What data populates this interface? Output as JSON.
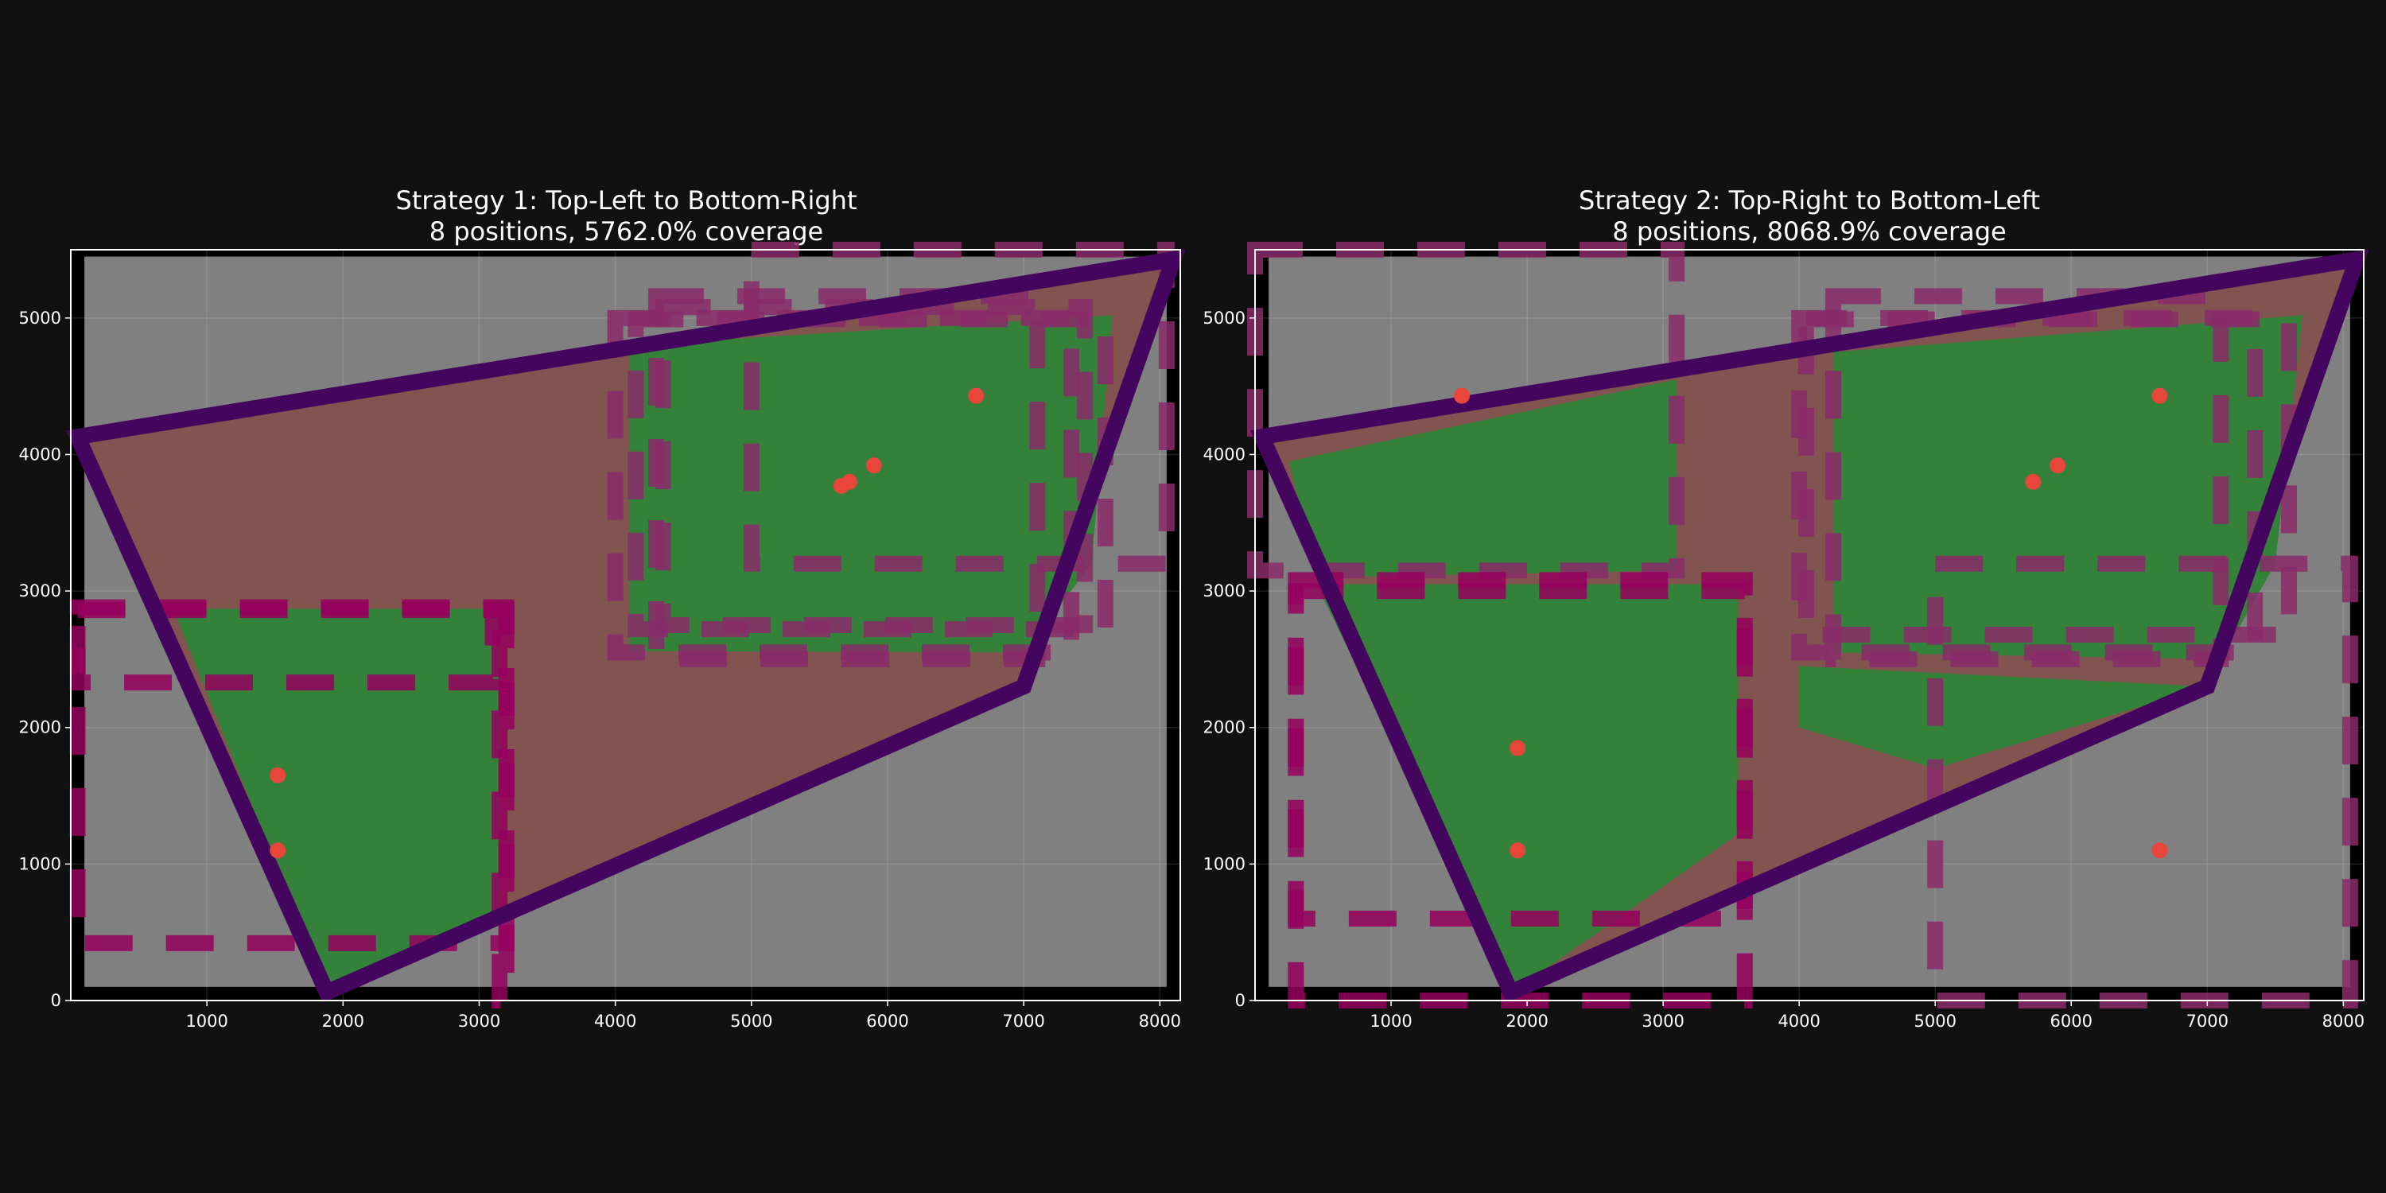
{
  "chart_data": [
    {
      "type": "scatter",
      "title": "Strategy 1: Top-Left to Bottom-Right",
      "subtitle": "8 positions, 5762.0% coverage",
      "xlim": [
        0,
        8150
      ],
      "ylim": [
        0,
        5500
      ],
      "xticks": [
        1000,
        2000,
        3000,
        4000,
        5000,
        6000,
        7000,
        8000
      ],
      "yticks": [
        0,
        1000,
        2000,
        3000,
        4000,
        5000
      ],
      "grid": true,
      "background_rect": [
        100,
        100,
        8050,
        5450
      ],
      "polygon": [
        [
          50,
          4130
        ],
        [
          1880,
          60
        ],
        [
          7000,
          2300
        ],
        [
          8100,
          5430
        ]
      ],
      "covered_regions": [
        [
          [
            750,
            2870
          ],
          [
            3150,
            2870
          ],
          [
            3150,
            630
          ],
          [
            1950,
            100
          ],
          [
            1880,
            60
          ]
        ],
        [
          [
            4100,
            4800
          ],
          [
            7650,
            5020
          ],
          [
            7500,
            3200
          ],
          [
            7000,
            2550
          ],
          [
            4100,
            2560
          ]
        ]
      ],
      "dashed_rects": [
        {
          "x0": 50,
          "y0": 2330,
          "x1": 3100,
          "y1": 2880,
          "color": "#96005e"
        },
        {
          "x0": 50,
          "y0": 420,
          "x1": 3200,
          "y1": 2860,
          "color": "#96005e"
        },
        {
          "x0": 3150,
          "y0": 0,
          "x1": 3200,
          "y1": 2880,
          "color": "#96005e"
        },
        {
          "x0": 4000,
          "y0": 2550,
          "x1": 7350,
          "y1": 5000,
          "color": "#8a2b6a"
        },
        {
          "x0": 4300,
          "y0": 2500,
          "x1": 7100,
          "y1": 5160,
          "color": "#8a2b6a"
        },
        {
          "x0": 4150,
          "y0": 2720,
          "x1": 7600,
          "y1": 4990,
          "color": "#8a2b6a"
        },
        {
          "x0": 4350,
          "y0": 2750,
          "x1": 7450,
          "y1": 5080,
          "color": "#8a2b6a"
        },
        {
          "x0": 5000,
          "y0": 3200,
          "x1": 8050,
          "y1": 5500,
          "color": "#8a2b6a"
        }
      ],
      "points": [
        {
          "x": 1520,
          "y": 1650
        },
        {
          "x": 1520,
          "y": 1100
        },
        {
          "x": 6650,
          "y": 4430
        },
        {
          "x": 5900,
          "y": 3920
        },
        {
          "x": 5720,
          "y": 3800
        },
        {
          "x": 5660,
          "y": 3770
        }
      ]
    },
    {
      "type": "scatter",
      "title": "Strategy 2: Top-Right to Bottom-Left",
      "subtitle": "8 positions, 8068.9% coverage",
      "xlim": [
        0,
        8150
      ],
      "ylim": [
        0,
        5500
      ],
      "xticks": [
        1000,
        2000,
        3000,
        4000,
        5000,
        6000,
        7000,
        8000
      ],
      "yticks": [
        0,
        1000,
        2000,
        3000,
        4000,
        5000
      ],
      "grid": true,
      "background_rect": [
        100,
        100,
        8050,
        5450
      ],
      "polygon": [
        [
          50,
          4130
        ],
        [
          1880,
          60
        ],
        [
          7000,
          2300
        ],
        [
          8100,
          5430
        ]
      ],
      "covered_regions": [
        [
          [
            250,
            3950
          ],
          [
            3100,
            4550
          ],
          [
            3100,
            3150
          ],
          [
            450,
            3100
          ]
        ],
        [
          [
            450,
            3050
          ],
          [
            3550,
            3050
          ],
          [
            3550,
            1220
          ],
          [
            1920,
            80
          ]
        ],
        [
          [
            4250,
            4750
          ],
          [
            7700,
            5020
          ],
          [
            7500,
            3200
          ],
          [
            7100,
            2500
          ],
          [
            4250,
            2550
          ]
        ],
        [
          [
            4000,
            2450
          ],
          [
            7000,
            2300
          ],
          [
            5000,
            1700
          ],
          [
            4000,
            2000
          ]
        ]
      ],
      "dashed_rects": [
        {
          "x0": 0,
          "y0": 3150,
          "x1": 3100,
          "y1": 5500,
          "color": "#8a2b6a"
        },
        {
          "x0": 300,
          "y0": 600,
          "x1": 3600,
          "y1": 3080,
          "color": "#96005e"
        },
        {
          "x0": 300,
          "y0": 0,
          "x1": 3600,
          "y1": 3000,
          "color": "#96005e"
        },
        {
          "x0": 4000,
          "y0": 2550,
          "x1": 7350,
          "y1": 5000,
          "color": "#8a2b6a"
        },
        {
          "x0": 4250,
          "y0": 2500,
          "x1": 7100,
          "y1": 5160,
          "color": "#8a2b6a"
        },
        {
          "x0": 4050,
          "y0": 2680,
          "x1": 7600,
          "y1": 4990,
          "color": "#8a2b6a"
        },
        {
          "x0": 5000,
          "y0": 0,
          "x1": 8050,
          "y1": 3200,
          "color": "#8a2b6a"
        },
        {
          "x0": 1000,
          "y0": 2330,
          "x1": 8100,
          "y1": 2330,
          "color": "#8a2b6a"
        }
      ],
      "points": [
        {
          "x": 1520,
          "y": 4430
        },
        {
          "x": 1930,
          "y": 1850
        },
        {
          "x": 1930,
          "y": 1100
        },
        {
          "x": 6650,
          "y": 4430
        },
        {
          "x": 5900,
          "y": 3920
        },
        {
          "x": 5720,
          "y": 3800
        },
        {
          "x": 6650,
          "y": 1100
        }
      ]
    }
  ],
  "colors": {
    "figure_bg": "#111111",
    "axes_bg": "#000000",
    "background_rect": "#808080",
    "polygon_fill": "#82514d",
    "polygon_edge": "#44055e",
    "covered_fill": "#34823a",
    "point": "#e8453b",
    "text": "#ffffff",
    "grid": "#ffffff"
  },
  "icons": {
    "point_marker": "circle-marker"
  }
}
